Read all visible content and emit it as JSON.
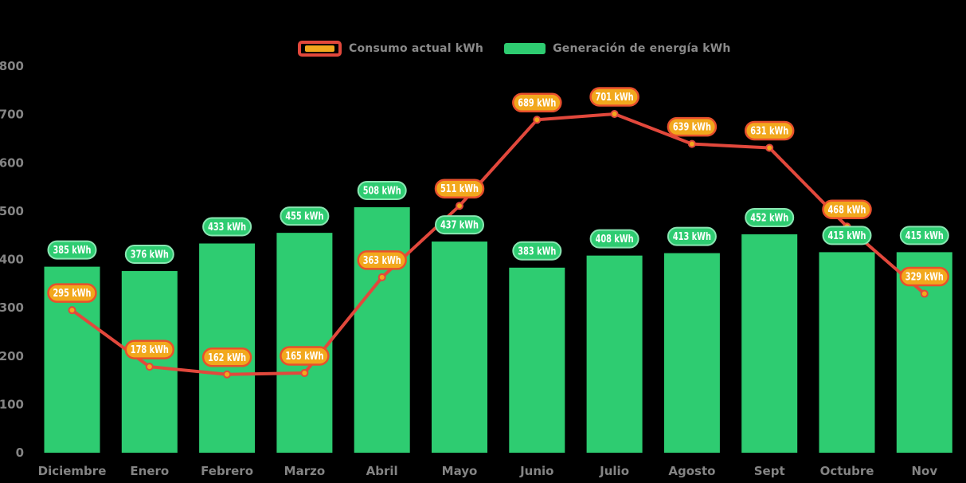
{
  "legend": {
    "items": [
      {
        "id": "consumption",
        "label": "Consumo actual kWh",
        "icon": "line-swatch",
        "border_color": "#e2483c",
        "fill_color": "#f2a81d"
      },
      {
        "id": "generation",
        "label": "Generación de energía kWh",
        "icon": "bar-swatch",
        "fill_color": "#2ecc71"
      }
    ]
  },
  "chart_data": {
    "type": "bar",
    "subtype": "bar-line-combo",
    "title": "",
    "xlabel": "",
    "ylabel": "",
    "categories": [
      "Diciembre",
      "Enero",
      "Febrero",
      "Marzo",
      "Abril",
      "Mayo",
      "Junio",
      "Julio",
      "Agosto",
      "Sept",
      "Octubre",
      "Nov"
    ],
    "series": [
      {
        "name": "Generación de energía kWh",
        "type": "bar",
        "color": "#2ecc71",
        "label_bg": "#2ecc71",
        "label_border": "#8ae6b2",
        "label_text_color": "#ffffff",
        "label_suffix": " kWh",
        "values": [
          385,
          376,
          433,
          455,
          508,
          437,
          383,
          408,
          413,
          452,
          415,
          415
        ]
      },
      {
        "name": "Consumo actual kWh",
        "type": "line",
        "color": "#e2483c",
        "marker_fill": "#f2a81d",
        "marker_stroke": "#e2483c",
        "label_bg": "#f2a81d",
        "label_border": "#e8502c",
        "label_text_color": "#ffffff",
        "label_suffix": " kWh",
        "values": [
          295,
          178,
          162,
          165,
          363,
          511,
          689,
          701,
          639,
          631,
          468,
          329
        ]
      }
    ],
    "y_ticks": [
      0,
      100,
      200,
      300,
      400,
      500,
      600,
      700,
      800
    ],
    "ylim": [
      0,
      800
    ],
    "grid": false,
    "legend_position": "top",
    "background": "#000000",
    "axis_text_color": "#848484"
  }
}
